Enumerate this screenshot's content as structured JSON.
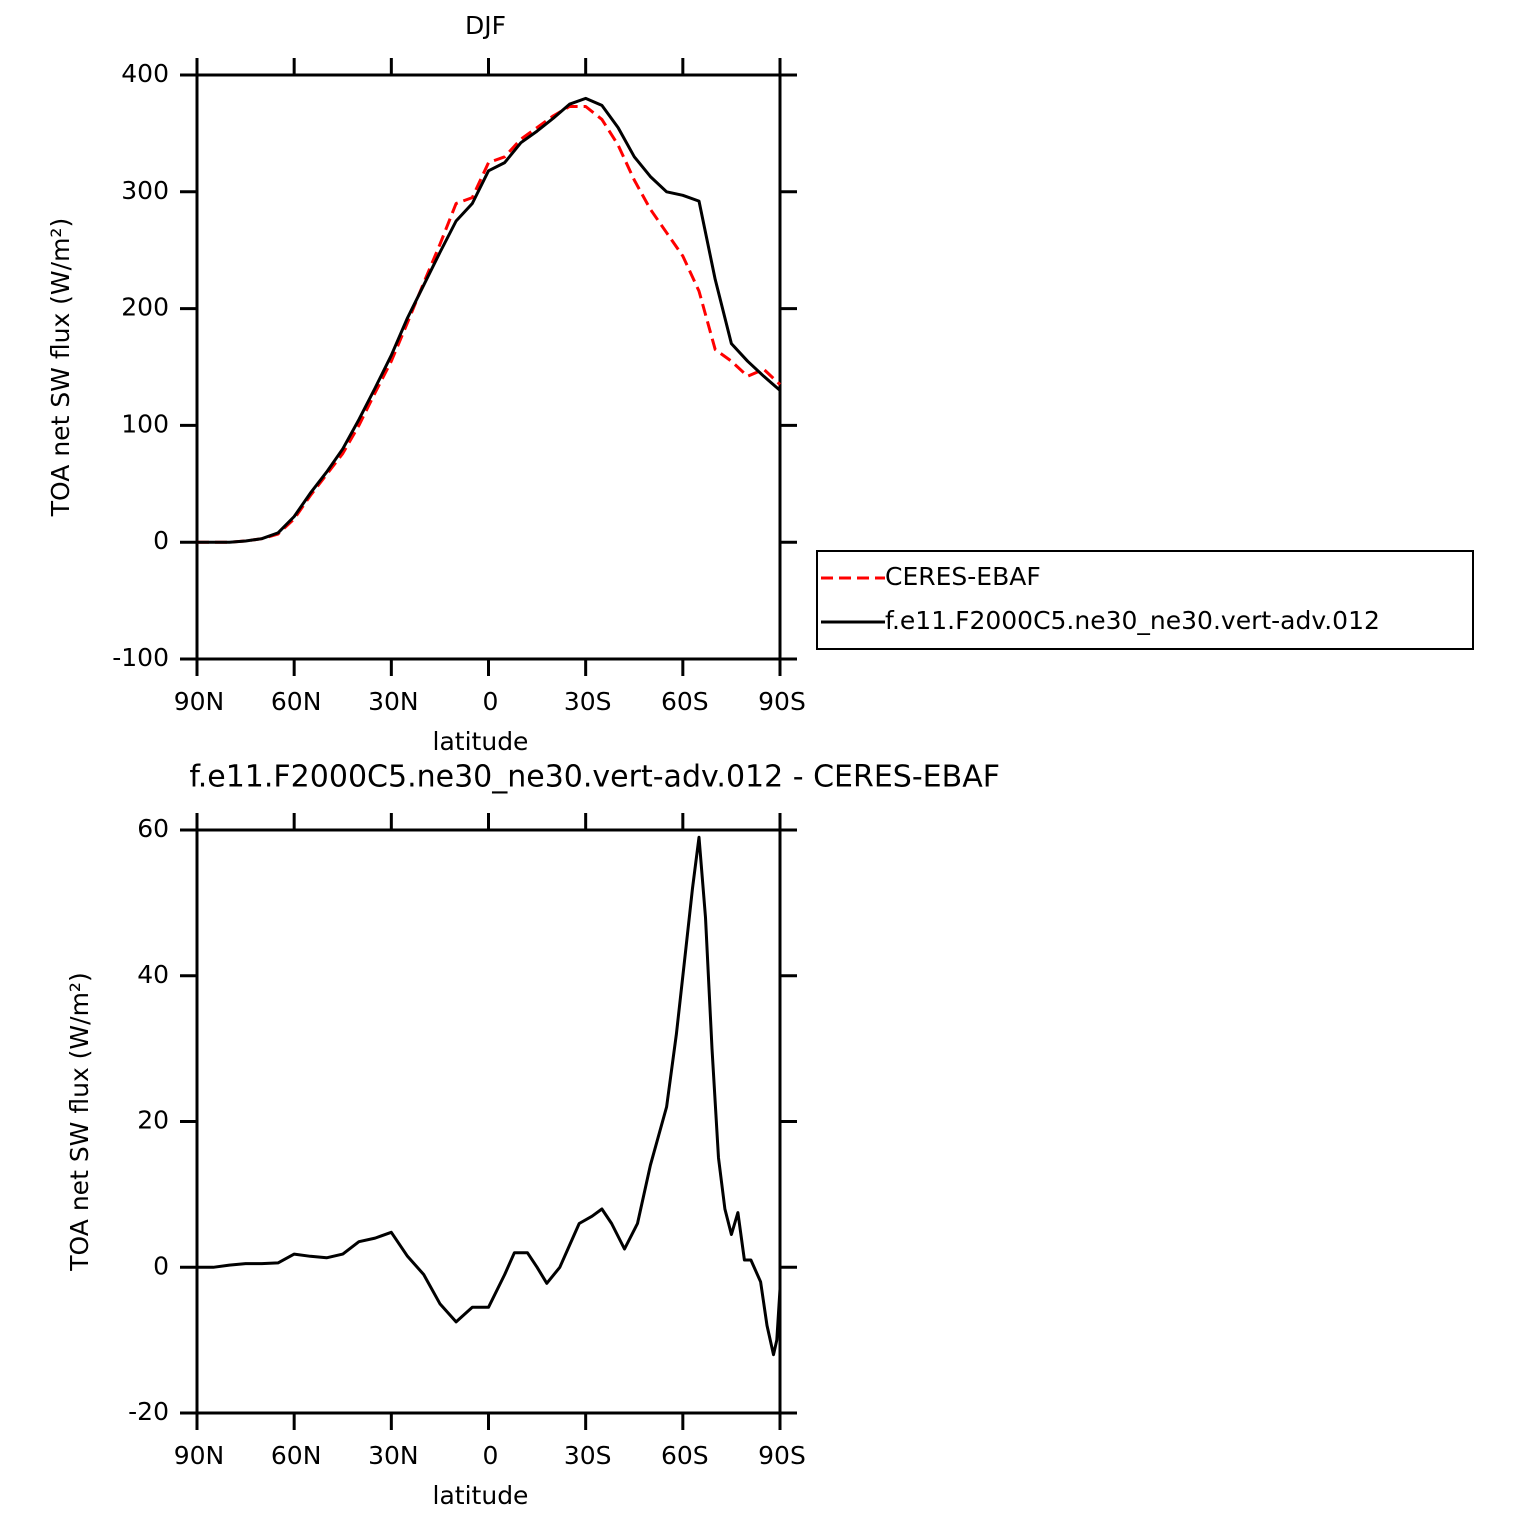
{
  "chart_data": [
    {
      "type": "line",
      "title": "DJF",
      "x_label": "latitude",
      "y_label": "TOA net SW flux (W/m²)",
      "x": [
        90,
        85,
        80,
        75,
        70,
        65,
        60,
        55,
        50,
        45,
        40,
        35,
        30,
        25,
        20,
        15,
        10,
        5,
        0,
        -5,
        -10,
        -15,
        -20,
        -25,
        -30,
        -35,
        -40,
        -45,
        -50,
        -55,
        -60,
        -65,
        -70,
        -75,
        -80,
        -85,
        -90
      ],
      "series": [
        {
          "name": "CERES-EBAF",
          "color": "#ff0000",
          "linestyle": "dashed",
          "values": [
            0,
            0,
            0,
            1,
            3,
            7,
            20,
            40,
            58,
            76,
            100,
            128,
            155,
            188,
            222,
            255,
            290,
            295,
            325,
            330,
            345,
            355,
            365,
            373,
            373,
            362,
            340,
            310,
            285,
            265,
            245,
            215,
            165,
            155,
            142,
            148,
            135
          ]
        },
        {
          "name": "f.e11.F2000C5.ne30_ne30.vert-adv.012",
          "color": "#000000",
          "linestyle": "solid",
          "values": [
            0,
            0,
            0,
            1,
            3,
            8,
            22,
            42,
            60,
            80,
            105,
            132,
            160,
            192,
            220,
            248,
            275,
            290,
            318,
            325,
            342,
            352,
            363,
            375,
            380,
            374,
            355,
            330,
            313,
            300,
            297,
            292,
            225,
            170,
            155,
            142,
            130
          ]
        }
      ],
      "xlim": [
        90,
        -90
      ],
      "xticks": [
        {
          "value": 90,
          "label": "90N"
        },
        {
          "value": 60,
          "label": "60N"
        },
        {
          "value": 30,
          "label": "30N"
        },
        0,
        {
          "value": -30,
          "label": "30S"
        },
        {
          "value": -60,
          "label": "60S"
        },
        {
          "value": -90,
          "label": "90S"
        }
      ],
      "ylim": [
        -100,
        400
      ],
      "yticks": [
        -100,
        0,
        100,
        200,
        300,
        400
      ],
      "legend": "right",
      "grid": false
    },
    {
      "type": "line",
      "title": "f.e11.F2000C5.ne30_ne30.vert-adv.012 - CERES-EBAF",
      "x_label": "latitude",
      "y_label": "TOA net SW flux (W/m²)",
      "x": [
        90,
        85,
        80,
        75,
        70,
        65,
        60,
        55,
        50,
        45,
        40,
        35,
        30,
        25,
        20,
        15,
        10,
        5,
        0,
        -5,
        -8,
        -12,
        -15,
        -18,
        -22,
        -25,
        -28,
        -32,
        -35,
        -38,
        -42,
        -46,
        -50,
        -55,
        -58,
        -61,
        -63,
        -65,
        -67,
        -69,
        -71,
        -73,
        -75,
        -77,
        -79,
        -81,
        -84,
        -86,
        -88,
        -89,
        -90
      ],
      "values": [
        0,
        0,
        0.3,
        0.5,
        0.5,
        0.6,
        1.8,
        1.5,
        1.3,
        1.8,
        3.5,
        4,
        4.8,
        1.5,
        -1,
        -5,
        -7.5,
        -5.5,
        -5.5,
        -1,
        2,
        2,
        0,
        -2.2,
        0,
        3,
        6,
        7,
        8,
        6,
        2.5,
        6,
        14,
        22,
        32,
        44,
        52,
        59,
        48,
        30,
        15,
        8,
        4.5,
        7.5,
        1,
        1,
        -2,
        -8,
        -12,
        -10,
        -3
      ],
      "color": "#000000",
      "xlim": [
        90,
        -90
      ],
      "xticks": [
        {
          "value": 90,
          "label": "90N"
        },
        {
          "value": 60,
          "label": "60N"
        },
        {
          "value": 30,
          "label": "30N"
        },
        0,
        {
          "value": -30,
          "label": "30S"
        },
        {
          "value": -60,
          "label": "60S"
        },
        {
          "value": -90,
          "label": "90S"
        }
      ],
      "ylim": [
        -20,
        60
      ],
      "yticks": [
        -20,
        0,
        20,
        40,
        60
      ],
      "grid": false
    }
  ]
}
